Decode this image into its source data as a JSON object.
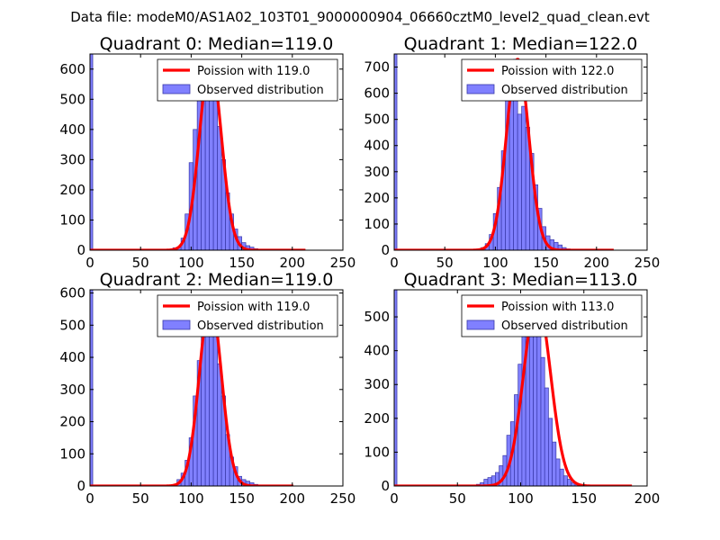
{
  "figure": {
    "suptitle": "Data file: modeM0/AS1A02_103T01_9000000904_06660cztM0_level2_quad_clean.evt"
  },
  "colors": {
    "bar_fill": "#8080ff",
    "bar_edge": "#3838a8",
    "poisson_line": "#ff0000",
    "axes": "#000000"
  },
  "chart_data": [
    {
      "type": "bar",
      "title": "Quadrant 0: Median=119.0",
      "median": 119.0,
      "xlim": [
        0,
        250
      ],
      "ylim": [
        0,
        650
      ],
      "xticks": [
        0,
        50,
        100,
        150,
        200,
        250
      ],
      "yticks": [
        0,
        100,
        200,
        300,
        400,
        500,
        600
      ],
      "legend": [
        "Poission with 119.0",
        "Observed distribution"
      ],
      "legend_loc": "upper right",
      "edge_bar": 650,
      "bin_width": 4,
      "bins_start": 82,
      "histogram": [
        8,
        10,
        40,
        120,
        290,
        400,
        560,
        620,
        560,
        620,
        520,
        410,
        300,
        190,
        120,
        70,
        45,
        25,
        15,
        10,
        5
      ],
      "poisson_lambda": 119.0,
      "poisson_peak": 625,
      "poisson_xmax": 213
    },
    {
      "type": "bar",
      "title": "Quadrant 1: Median=122.0",
      "median": 122.0,
      "xlim": [
        0,
        250
      ],
      "ylim": [
        0,
        750
      ],
      "xticks": [
        0,
        50,
        100,
        150,
        200,
        250
      ],
      "yticks": [
        0,
        100,
        200,
        300,
        400,
        500,
        600,
        700
      ],
      "legend": [
        "Poission with 122.0",
        "Observed distribution"
      ],
      "legend_loc": "upper right",
      "edge_bar": 750,
      "bin_width": 4,
      "bins_start": 82,
      "histogram": [
        5,
        10,
        25,
        60,
        140,
        240,
        380,
        600,
        700,
        730,
        520,
        550,
        470,
        370,
        250,
        160,
        90,
        55,
        40,
        30,
        20,
        10,
        5
      ],
      "poisson_lambda": 122.0,
      "poisson_peak": 730,
      "poisson_xmax": 217
    },
    {
      "type": "bar",
      "title": "Quadrant 2: Median=119.0",
      "median": 119.0,
      "xlim": [
        0,
        250
      ],
      "ylim": [
        0,
        610
      ],
      "xticks": [
        0,
        50,
        100,
        150,
        200,
        250
      ],
      "yticks": [
        0,
        100,
        200,
        300,
        400,
        500,
        600
      ],
      "legend": [
        "Poission with 119.0",
        "Observed distribution"
      ],
      "legend_loc": "upper right",
      "edge_bar": 610,
      "bin_width": 4,
      "bins_start": 86,
      "histogram": [
        20,
        40,
        80,
        150,
        280,
        390,
        480,
        590,
        530,
        580,
        380,
        280,
        160,
        90,
        60,
        30,
        20,
        15,
        10,
        5
      ],
      "poisson_lambda": 119.0,
      "poisson_peak": 575,
      "poisson_xmax": 201
    },
    {
      "type": "bar",
      "title": "Quadrant 3: Median=113.0",
      "median": 113.0,
      "xlim": [
        0,
        200
      ],
      "ylim": [
        0,
        580
      ],
      "xticks": [
        0,
        50,
        100,
        150,
        200
      ],
      "yticks": [
        0,
        100,
        200,
        300,
        400,
        500
      ],
      "legend": [
        "Poission with 113.0",
        "Observed distribution"
      ],
      "legend_loc": "upper right",
      "edge_bar": 580,
      "bin_width": 3,
      "bins_start": 65,
      "histogram": [
        5,
        10,
        20,
        25,
        30,
        40,
        60,
        90,
        150,
        190,
        270,
        360,
        460,
        510,
        560,
        560,
        460,
        380,
        290,
        200,
        130,
        80,
        50,
        30,
        20,
        10,
        5
      ],
      "poisson_lambda": 113.0,
      "poisson_peak": 550,
      "poisson_xmax": 188
    }
  ]
}
